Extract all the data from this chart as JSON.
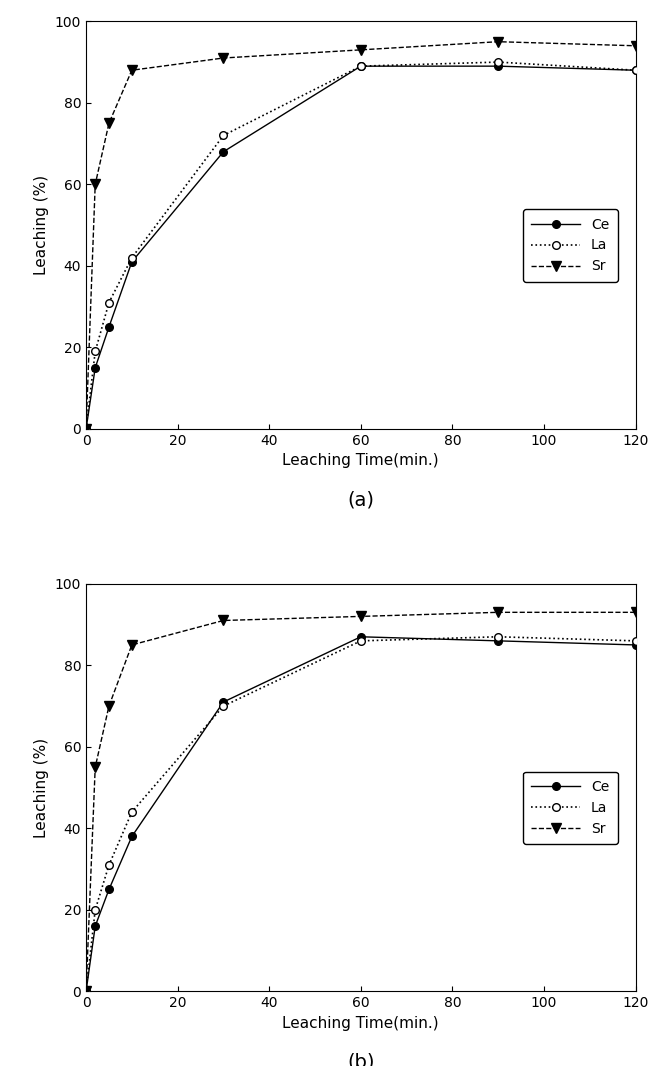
{
  "subplot_a": {
    "x": [
      0,
      2,
      5,
      10,
      30,
      60,
      90,
      120
    ],
    "Ce": [
      0,
      15,
      25,
      41,
      68,
      89,
      89,
      88
    ],
    "La": [
      0,
      19,
      31,
      42,
      72,
      89,
      90,
      88
    ],
    "Sr": [
      0,
      60,
      75,
      88,
      91,
      93,
      95,
      94
    ]
  },
  "subplot_b": {
    "x": [
      0,
      2,
      5,
      10,
      30,
      60,
      90,
      120
    ],
    "Ce": [
      0,
      16,
      25,
      38,
      71,
      87,
      86,
      85
    ],
    "La": [
      0,
      20,
      31,
      44,
      70,
      86,
      87,
      86
    ],
    "Sr": [
      0,
      55,
      70,
      85,
      91,
      92,
      93,
      93
    ]
  },
  "xlabel": "Leaching Time(min.)",
  "ylabel": "Leaching (%)",
  "ylim": [
    0,
    100
  ],
  "xlim": [
    0,
    120
  ],
  "xticks": [
    0,
    20,
    40,
    60,
    80,
    100,
    120
  ],
  "yticks": [
    0,
    20,
    40,
    60,
    80,
    100
  ],
  "legend_labels": [
    "Ce",
    "La",
    "Sr"
  ],
  "label_a": "(a)",
  "label_b": "(b)",
  "line_color": "#000000",
  "background_color": "#ffffff",
  "fontsize_label": 11,
  "fontsize_tick": 10,
  "fontsize_caption": 14,
  "fontsize_legend": 10
}
